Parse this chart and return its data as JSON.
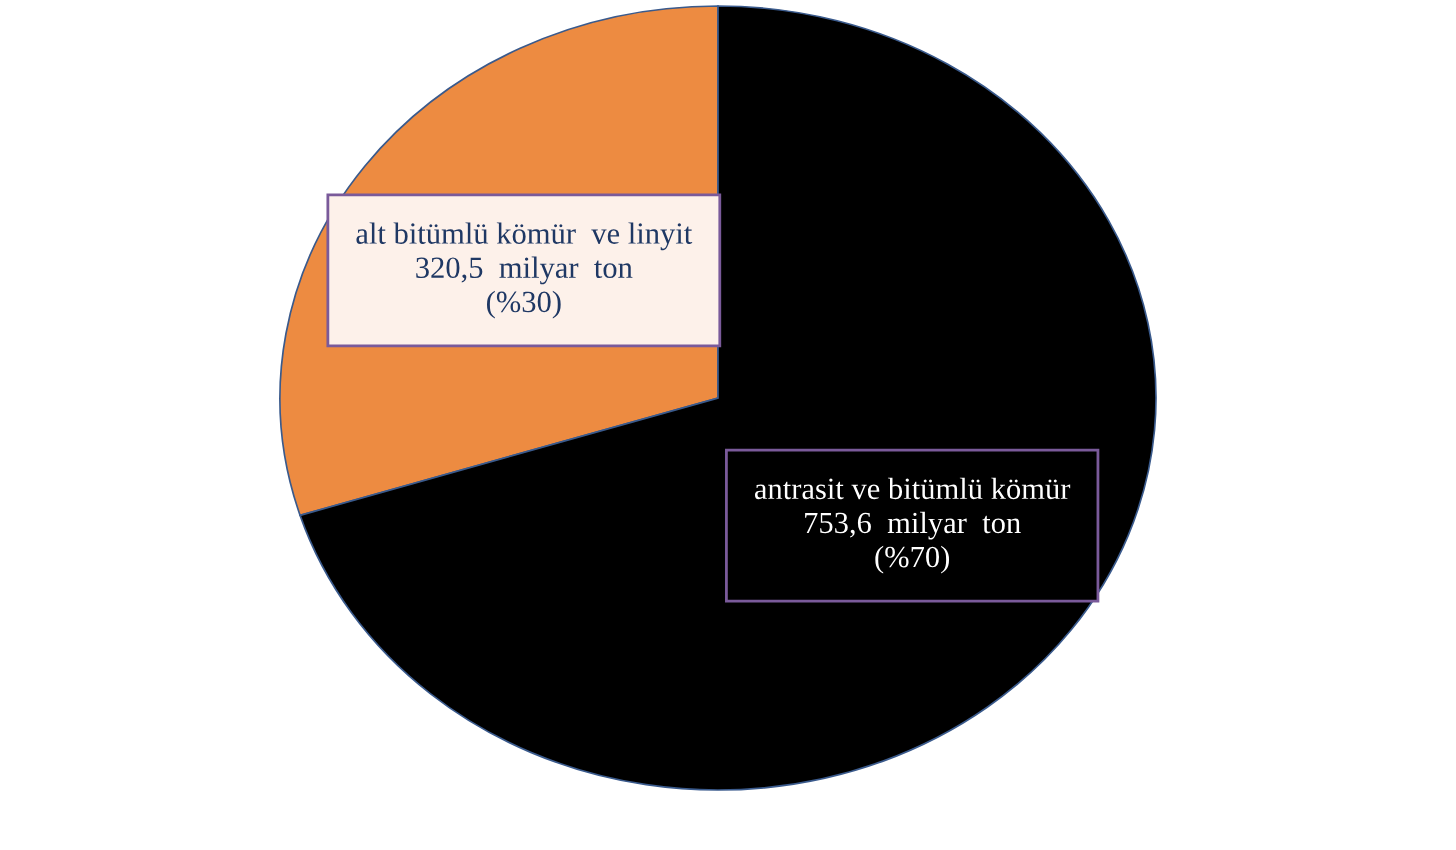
{
  "chart_data": {
    "type": "pie",
    "categories": [
      "alt bitümlü kömür  ve linyit",
      "antrasit ve bitümlü kömür"
    ],
    "values": [
      320.5,
      753.6
    ],
    "colors": [
      "#ed8b41",
      "#000000"
    ],
    "value_labels": [
      "320,5  milyar  ton\n(%30)",
      "753,6  milyar  ton\n(%70)"
    ]
  }
}
